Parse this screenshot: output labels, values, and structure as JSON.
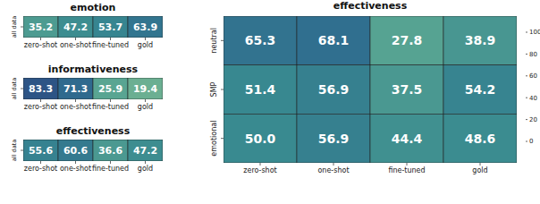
{
  "chart_data": [
    {
      "type": "heatmap",
      "title": "emotion",
      "categories": [
        "zero-shot",
        "one-shot",
        "fine-tuned",
        "gold"
      ],
      "rows": [
        "all data"
      ],
      "cells": [
        [
          35.2,
          47.2,
          53.7,
          63.9
        ]
      ],
      "data_labels": true
    },
    {
      "type": "heatmap",
      "title": "informativeness",
      "categories": [
        "zero-shot",
        "one-shot",
        "fine-tuned",
        "gold"
      ],
      "rows": [
        "all data"
      ],
      "cells": [
        [
          83.3,
          71.3,
          25.9,
          19.4
        ]
      ],
      "data_labels": true
    },
    {
      "type": "heatmap",
      "title": "effectiveness",
      "categories": [
        "zero-shot",
        "one-shot",
        "fine-tuned",
        "gold"
      ],
      "rows": [
        "all data"
      ],
      "cells": [
        [
          55.6,
          60.6,
          36.6,
          47.2
        ]
      ],
      "data_labels": true
    },
    {
      "type": "heatmap",
      "title": "effectiveness",
      "categories": [
        "zero-shot",
        "one-shot",
        "fine-tuned",
        "gold"
      ],
      "rows": [
        "neutral",
        "SMP",
        "emotional"
      ],
      "cells": [
        [
          65.3,
          68.1,
          27.8,
          38.9
        ],
        [
          51.4,
          56.9,
          37.5,
          54.2
        ],
        [
          50.0,
          56.9,
          44.4,
          48.6
        ]
      ],
      "value_labels": [
        [
          "65.3",
          "68.1",
          "27.8",
          "38.9"
        ],
        [
          "51.4",
          "56.9",
          "37.5",
          "54.2"
        ],
        [
          "50.0",
          "56.9",
          "44.4",
          "48.6"
        ]
      ],
      "colorbar_range": [
        0,
        100
      ],
      "colorbar_ticks": [
        0,
        20,
        40,
        60,
        80,
        100
      ],
      "data_labels": true
    }
  ]
}
